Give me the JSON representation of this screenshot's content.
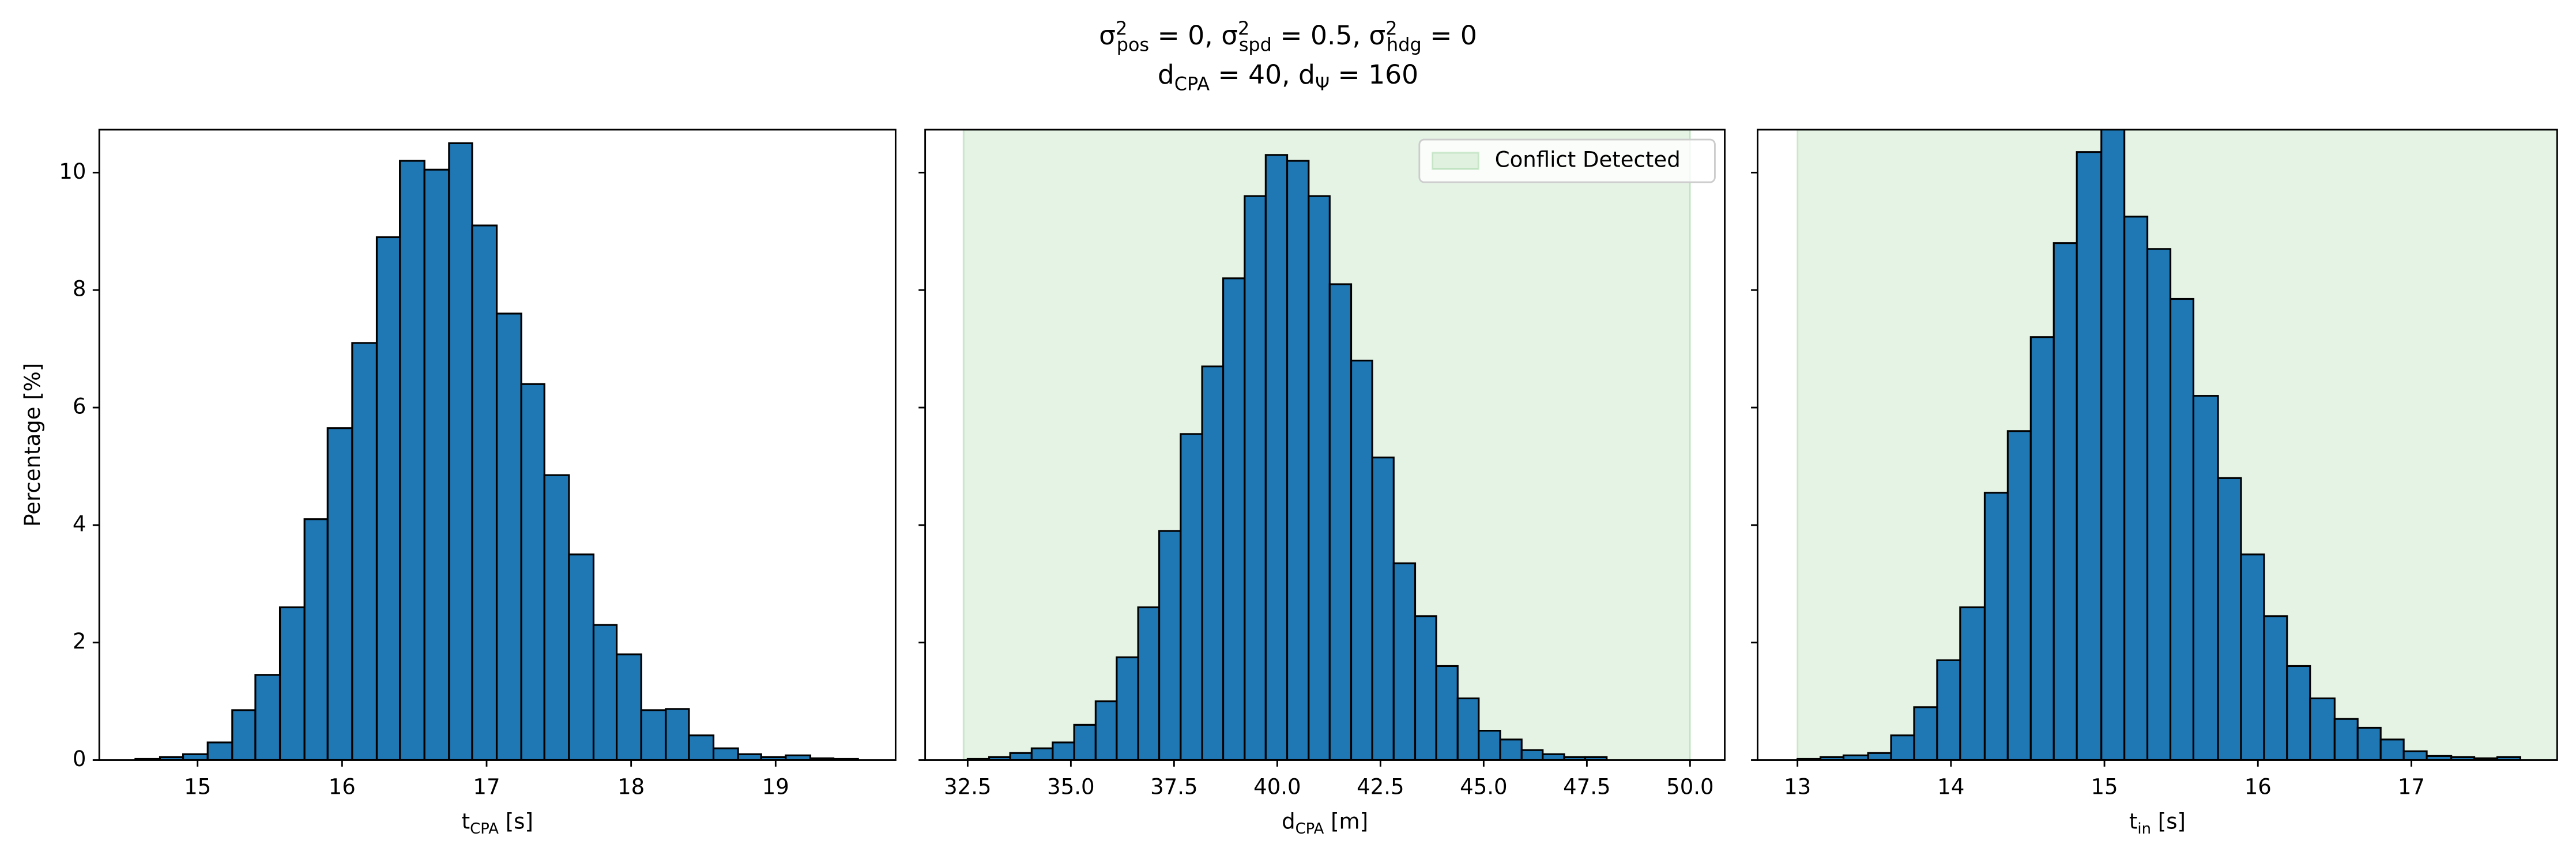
{
  "title": [
    "σ^{2}_{pos} = 0, σ^{2}_{spd} = 0.5, σ^{2}_{hdg} = 0",
    "d_{CPA} = 40, d_{Ψ} = 160"
  ],
  "chart_data": [
    {
      "type": "histogram",
      "color": "#1f77b4",
      "edgecolor": "#000000",
      "xlabel": "t_{CPA} [s]",
      "ylabel": "Percentage [%]",
      "bins": [
        14.57,
        14.74,
        14.9,
        15.07,
        15.24,
        15.4,
        15.57,
        15.74,
        15.9,
        16.07,
        16.24,
        16.4,
        16.57,
        16.74,
        16.9,
        17.07,
        17.24,
        17.4,
        17.57,
        17.74,
        17.9,
        18.07,
        18.24,
        18.4,
        18.57,
        18.74,
        18.9,
        19.07,
        19.24,
        19.4,
        19.57
      ],
      "values": [
        0.02,
        0.05,
        0.1,
        0.3,
        0.85,
        1.45,
        2.6,
        4.1,
        5.65,
        7.1,
        8.9,
        10.2,
        10.05,
        10.5,
        9.1,
        7.6,
        6.4,
        4.85,
        3.5,
        2.3,
        1.8,
        0.85,
        0.87,
        0.42,
        0.2,
        0.1,
        0.05,
        0.08,
        0.03,
        0.02
      ],
      "xlim": [
        14.32,
        19.83
      ],
      "xticks": [
        15,
        16,
        17,
        18,
        19
      ],
      "ylim": [
        0,
        10.73
      ],
      "yticks": [
        0,
        2,
        4,
        6,
        8,
        10
      ]
    },
    {
      "type": "histogram",
      "color": "#1f77b4",
      "edgecolor": "#000000",
      "xlabel": "d_{CPA} [m]",
      "bins": [
        32.5,
        33.02,
        33.53,
        34.05,
        34.56,
        35.08,
        35.6,
        36.11,
        36.63,
        37.14,
        37.66,
        38.18,
        38.69,
        39.21,
        39.72,
        40.24,
        40.76,
        41.27,
        41.79,
        42.3,
        42.82,
        43.34,
        43.85,
        44.37,
        44.88,
        45.4,
        45.92,
        46.43,
        46.95,
        47.46,
        47.98
      ],
      "values": [
        0.02,
        0.05,
        0.12,
        0.2,
        0.3,
        0.6,
        1.0,
        1.75,
        2.6,
        3.9,
        5.55,
        6.7,
        8.2,
        9.6,
        10.3,
        10.2,
        9.6,
        8.1,
        6.8,
        5.15,
        3.35,
        2.45,
        1.6,
        1.05,
        0.5,
        0.35,
        0.17,
        0.1,
        0.05,
        0.05
      ],
      "span": {
        "range": [
          32.4,
          50
        ],
        "label": "Conflict Detected",
        "color": "#2ca02c"
      },
      "legend": "upper right",
      "xlim": [
        31.47,
        50.84
      ],
      "xticks": [
        32.5,
        {
          "value": 35,
          "label": "35.0"
        },
        37.5,
        {
          "value": 40,
          "label": "40.0"
        },
        42.5,
        {
          "value": 45,
          "label": "45.0"
        },
        47.5,
        {
          "value": 50,
          "label": "50.0"
        }
      ],
      "ylim": [
        0,
        10.73
      ]
    },
    {
      "type": "histogram",
      "color": "#1f77b4",
      "edgecolor": "#000000",
      "xlabel": "t_{in} [s]",
      "bins": [
        13,
        13.15,
        13.3,
        13.46,
        13.61,
        13.76,
        13.91,
        14.06,
        14.22,
        14.37,
        14.52,
        14.67,
        14.82,
        14.98,
        15.13,
        15.28,
        15.43,
        15.58,
        15.74,
        15.89,
        16.04,
        16.19,
        16.34,
        16.5,
        16.65,
        16.8,
        16.95,
        17.1,
        17.26,
        17.41,
        17.56,
        17.71
      ],
      "values": [
        0.02,
        0.05,
        0.08,
        0.12,
        0.42,
        0.9,
        1.7,
        2.6,
        4.55,
        5.6,
        7.2,
        8.8,
        10.35,
        11.0,
        9.25,
        8.7,
        7.85,
        6.2,
        4.8,
        3.5,
        2.45,
        1.6,
        1.05,
        0.7,
        0.55,
        0.35,
        0.15,
        0.07,
        0.05,
        0.03,
        0.05
      ],
      "span": {
        "range": [
          13,
          17.95
        ],
        "color": "#2ca02c"
      },
      "xlim": [
        12.74,
        17.95
      ],
      "xticks": [
        13,
        14,
        15,
        16,
        17
      ],
      "ylim": [
        0,
        10.73
      ]
    }
  ]
}
